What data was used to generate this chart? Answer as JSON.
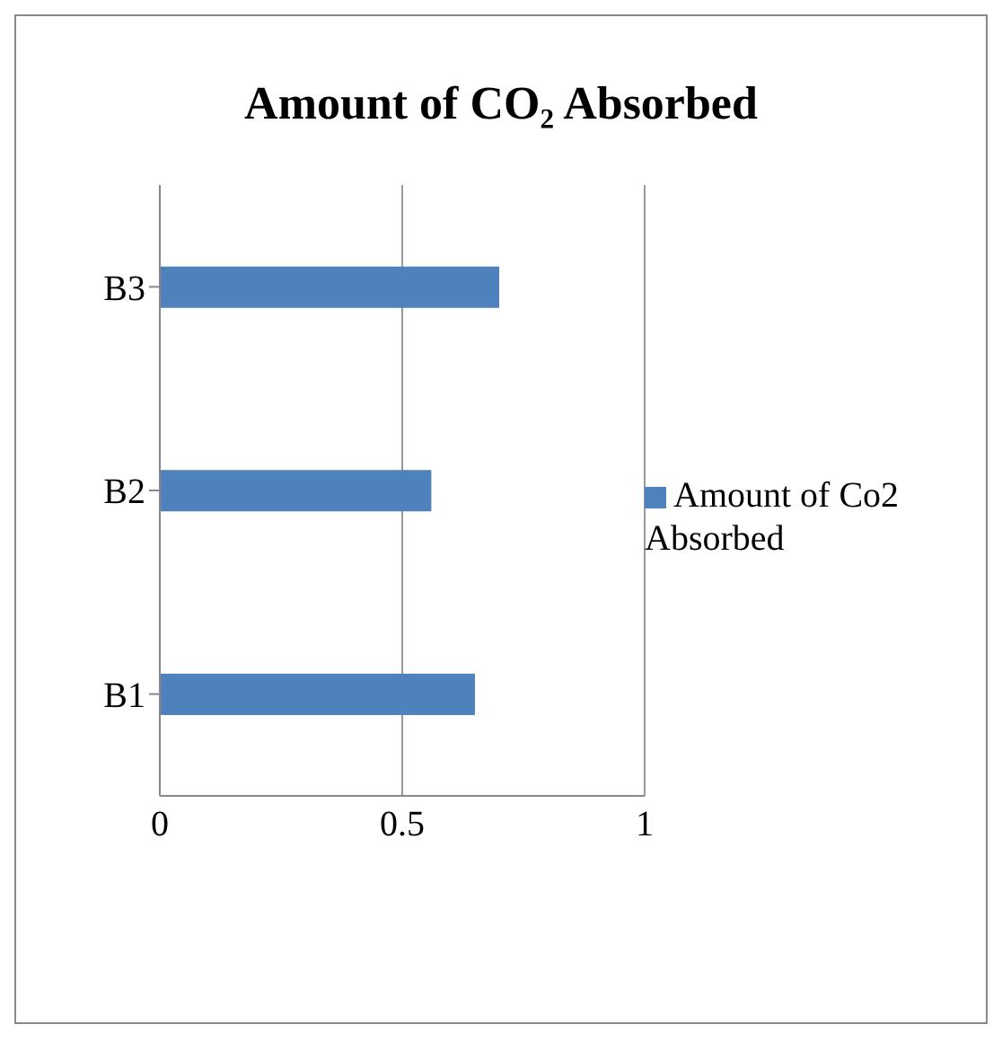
{
  "chart_data": {
    "type": "bar",
    "title": "Amount of CO₂ Absorbed",
    "orientation": "horizontal",
    "categories": [
      "B3",
      "B2",
      "B1"
    ],
    "series": [
      {
        "name": "Amount of Co2 Absorbed",
        "color": "#4f81bd",
        "values": [
          0.7,
          0.56,
          0.65
        ]
      }
    ],
    "xlim": [
      0,
      1
    ],
    "xticks": [
      0,
      0.5,
      1
    ],
    "grid": "x",
    "legend": "right"
  }
}
